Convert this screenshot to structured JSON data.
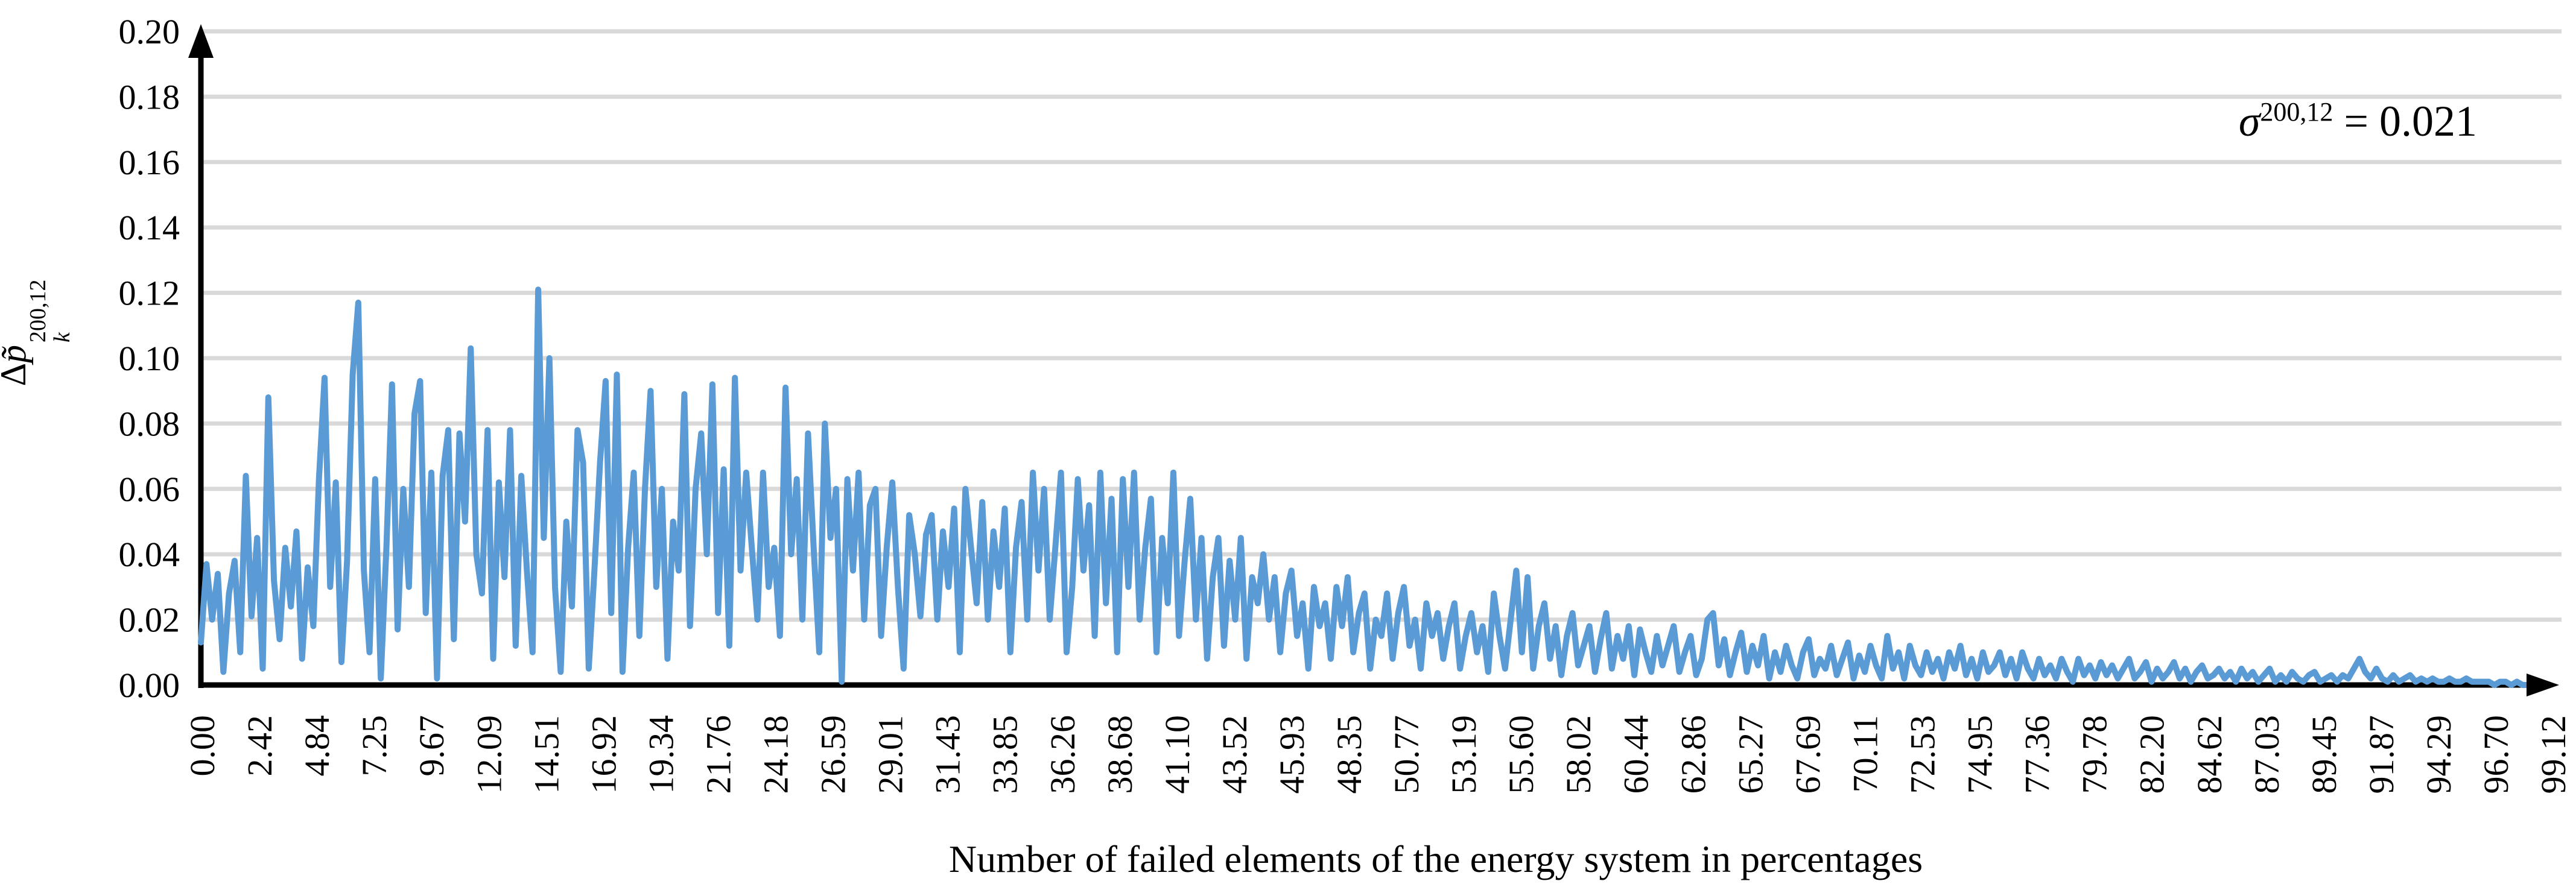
{
  "colors": {
    "line": "#5B9BD5",
    "grid": "#D9D9D9",
    "axis": "#000000",
    "text": "#000000",
    "background": "#FFFFFF"
  },
  "chart_data": {
    "type": "line",
    "title": "",
    "xlabel": "Number of failed elements of the energy system in percentages",
    "ylabel": "Δp̃_k^200,12",
    "ylabel_parts": {
      "delta": "Δ",
      "p": "p̃",
      "sup": "200,12",
      "sub": "k"
    },
    "annotation": {
      "sigma": "σ",
      "sup": "200,12",
      "rest": " = 0.021",
      "text": "σ^200,12 = 0.021"
    },
    "grid": "horizontal-only",
    "legend": "none",
    "ylim": [
      0,
      0.2
    ],
    "y_tick_step": 0.02,
    "y_tick_labels": [
      "0.00",
      "0.02",
      "0.04",
      "0.06",
      "0.08",
      "0.10",
      "0.12",
      "0.14",
      "0.16",
      "0.18",
      "0.20"
    ],
    "x_tick_labels": [
      "0.00",
      "2.42",
      "4.84",
      "7.25",
      "9.67",
      "12.09",
      "14.51",
      "16.92",
      "19.34",
      "21.76",
      "24.18",
      "26.59",
      "29.01",
      "31.43",
      "33.85",
      "36.26",
      "38.68",
      "41.10",
      "43.52",
      "45.93",
      "48.35",
      "50.77",
      "53.19",
      "55.60",
      "58.02",
      "60.44",
      "62.86",
      "65.27",
      "67.69",
      "70.11",
      "72.53",
      "74.95",
      "77.36",
      "79.78",
      "82.20",
      "84.62",
      "87.03",
      "89.45",
      "91.87",
      "94.29",
      "96.70",
      "99.12"
    ],
    "x_unit": "%",
    "x_range_percent": [
      0,
      100
    ],
    "series": [
      {
        "name": "Δp̃_k^200,12",
        "color": "#5B9BD5",
        "x_start": 0,
        "x_step": 0.241,
        "values": [
          0.013,
          0.037,
          0.02,
          0.034,
          0.004,
          0.028,
          0.038,
          0.01,
          0.064,
          0.021,
          0.045,
          0.005,
          0.088,
          0.032,
          0.014,
          0.042,
          0.024,
          0.047,
          0.008,
          0.036,
          0.018,
          0.063,
          0.094,
          0.03,
          0.062,
          0.007,
          0.038,
          0.095,
          0.117,
          0.035,
          0.01,
          0.063,
          0.002,
          0.042,
          0.092,
          0.017,
          0.06,
          0.03,
          0.083,
          0.093,
          0.022,
          0.065,
          0.002,
          0.064,
          0.078,
          0.014,
          0.077,
          0.05,
          0.103,
          0.04,
          0.028,
          0.078,
          0.008,
          0.062,
          0.033,
          0.078,
          0.012,
          0.064,
          0.035,
          0.01,
          0.121,
          0.045,
          0.1,
          0.03,
          0.004,
          0.05,
          0.024,
          0.078,
          0.068,
          0.005,
          0.035,
          0.068,
          0.093,
          0.022,
          0.095,
          0.004,
          0.042,
          0.065,
          0.015,
          0.06,
          0.09,
          0.03,
          0.06,
          0.008,
          0.05,
          0.035,
          0.089,
          0.018,
          0.06,
          0.077,
          0.04,
          0.092,
          0.022,
          0.066,
          0.012,
          0.094,
          0.035,
          0.065,
          0.042,
          0.02,
          0.065,
          0.03,
          0.042,
          0.015,
          0.091,
          0.04,
          0.063,
          0.02,
          0.077,
          0.042,
          0.01,
          0.08,
          0.045,
          0.06,
          0.001,
          0.063,
          0.035,
          0.065,
          0.02,
          0.055,
          0.06,
          0.015,
          0.042,
          0.062,
          0.03,
          0.005,
          0.052,
          0.04,
          0.021,
          0.046,
          0.052,
          0.02,
          0.047,
          0.03,
          0.054,
          0.01,
          0.06,
          0.042,
          0.025,
          0.056,
          0.02,
          0.047,
          0.03,
          0.054,
          0.01,
          0.042,
          0.056,
          0.02,
          0.065,
          0.035,
          0.06,
          0.02,
          0.042,
          0.065,
          0.01,
          0.03,
          0.063,
          0.035,
          0.055,
          0.015,
          0.065,
          0.025,
          0.057,
          0.01,
          0.063,
          0.03,
          0.065,
          0.02,
          0.042,
          0.057,
          0.01,
          0.045,
          0.025,
          0.065,
          0.015,
          0.038,
          0.057,
          0.02,
          0.045,
          0.008,
          0.033,
          0.045,
          0.012,
          0.038,
          0.02,
          0.045,
          0.008,
          0.033,
          0.025,
          0.04,
          0.02,
          0.033,
          0.01,
          0.028,
          0.035,
          0.015,
          0.025,
          0.005,
          0.03,
          0.018,
          0.025,
          0.008,
          0.03,
          0.018,
          0.033,
          0.01,
          0.022,
          0.028,
          0.005,
          0.02,
          0.015,
          0.028,
          0.008,
          0.022,
          0.03,
          0.012,
          0.02,
          0.005,
          0.025,
          0.015,
          0.022,
          0.008,
          0.018,
          0.025,
          0.005,
          0.015,
          0.022,
          0.01,
          0.018,
          0.004,
          0.028,
          0.015,
          0.005,
          0.02,
          0.035,
          0.01,
          0.033,
          0.005,
          0.018,
          0.025,
          0.008,
          0.018,
          0.003,
          0.015,
          0.022,
          0.006,
          0.012,
          0.018,
          0.004,
          0.014,
          0.022,
          0.005,
          0.015,
          0.008,
          0.018,
          0.003,
          0.017,
          0.01,
          0.004,
          0.015,
          0.006,
          0.012,
          0.018,
          0.004,
          0.01,
          0.015,
          0.003,
          0.008,
          0.02,
          0.022,
          0.006,
          0.014,
          0.003,
          0.01,
          0.016,
          0.004,
          0.012,
          0.006,
          0.015,
          0.002,
          0.01,
          0.004,
          0.012,
          0.006,
          0.002,
          0.01,
          0.014,
          0.003,
          0.008,
          0.005,
          0.012,
          0.003,
          0.008,
          0.013,
          0.002,
          0.009,
          0.004,
          0.012,
          0.006,
          0.002,
          0.015,
          0.005,
          0.01,
          0.002,
          0.012,
          0.006,
          0.003,
          0.01,
          0.004,
          0.008,
          0.002,
          0.01,
          0.005,
          0.012,
          0.003,
          0.008,
          0.002,
          0.01,
          0.004,
          0.006,
          0.01,
          0.003,
          0.008,
          0.002,
          0.01,
          0.005,
          0.002,
          0.008,
          0.003,
          0.006,
          0.002,
          0.008,
          0.004,
          0.001,
          0.008,
          0.003,
          0.006,
          0.002,
          0.007,
          0.003,
          0.006,
          0.002,
          0.005,
          0.008,
          0.002,
          0.004,
          0.007,
          0.001,
          0.005,
          0.002,
          0.004,
          0.007,
          0.002,
          0.005,
          0.001,
          0.004,
          0.006,
          0.002,
          0.003,
          0.005,
          0.002,
          0.004,
          0.001,
          0.005,
          0.002,
          0.004,
          0.001,
          0.003,
          0.005,
          0.001,
          0.003,
          0.001,
          0.004,
          0.002,
          0.001,
          0.003,
          0.004,
          0.001,
          0.002,
          0.003,
          0.001,
          0.003,
          0.002,
          0.005,
          0.008,
          0.004,
          0.002,
          0.005,
          0.002,
          0.001,
          0.003,
          0.001,
          0.002,
          0.003,
          0.001,
          0.002,
          0.001,
          0.002,
          0.001,
          0.001,
          0.002,
          0.001,
          0.001,
          0.002,
          0.001,
          0.001,
          0.001,
          0.001,
          0.0,
          0.001,
          0.001,
          0.0,
          0.001,
          0.0,
          0.0,
          0.0
        ]
      }
    ]
  }
}
